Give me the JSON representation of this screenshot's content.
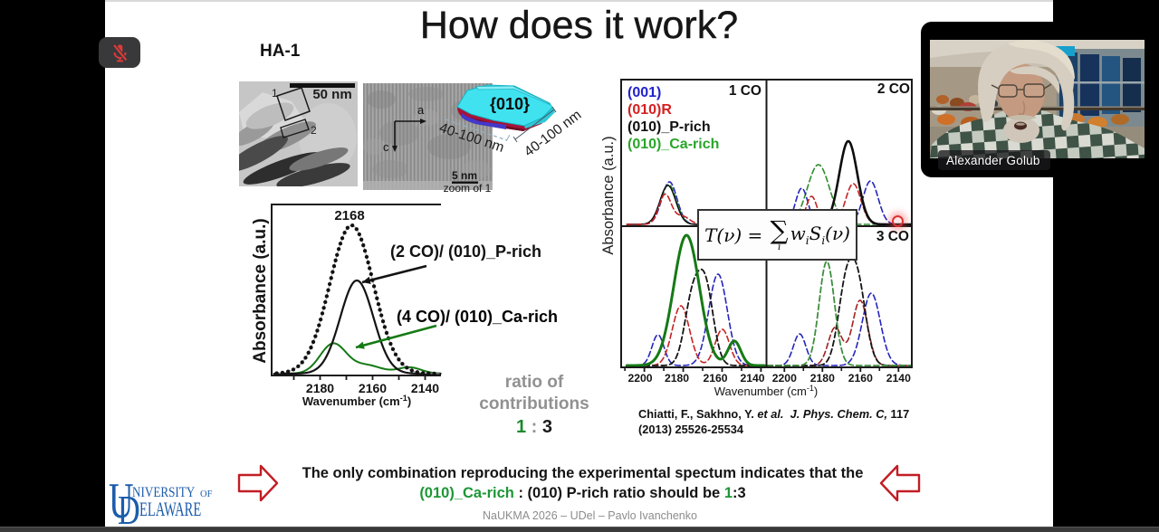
{
  "slide": {
    "title": "How does it work?",
    "sample_label": "HA-1",
    "footer": "NaUKMA 2026 – UDel – Pavlo Ivanchenko"
  },
  "colors": {
    "blue": "#2222bb",
    "red": "#c42222",
    "black": "#111111",
    "green_solid": "#157a15",
    "green_dashed": "#2e8b2e",
    "legend_green": "#2aa52a",
    "banner_green": "#1d9636",
    "ratio_green": "#1d8a2e",
    "arrow_red": "#c21d24",
    "ud_blue": "#1c5cab",
    "laser_red": "#e03030",
    "crystal_cyan": "#3fe0ee",
    "crystal_crimson": "#a81236",
    "crystal_blue": "#4338c8"
  },
  "tem1": {
    "scale_bar_label": "50 nm",
    "region1_label": "1",
    "region2_label": "2"
  },
  "tem2": {
    "axis_a_label": "a",
    "axis_c_label": "c",
    "scale_bar_label": "5 nm",
    "caption": "zoom of 1"
  },
  "crystal": {
    "face_label": "{010}",
    "front_dimension": "40-100 nm",
    "side_dimension": "40-100 nm"
  },
  "formula": {
    "prefix": "T(ν) = ",
    "sigma": "∑",
    "sigma_subscript": "i",
    "terms": [
      {
        "text": "w",
        "style": "var"
      },
      {
        "text": "i",
        "style": "sub"
      },
      {
        "text": "S",
        "style": "var"
      },
      {
        "text": "i",
        "style": "sub"
      },
      {
        "text": "(ν)",
        "style": "var"
      }
    ]
  },
  "ratio_note": {
    "line1": "ratio of",
    "line2": "contributions",
    "value_parts": [
      {
        "text": "1",
        "color": "#1d8a2e"
      },
      {
        "text": " : ",
        "color": "#919191"
      },
      {
        "text": "3",
        "color": "#1a1a1a"
      }
    ]
  },
  "citation": {
    "line1_parts": [
      {
        "text": "Chiatti, F., Sakhno, Y. ",
        "italic": false
      },
      {
        "text": "et al.",
        "italic": true
      },
      {
        "text": "  ",
        "italic": false
      },
      {
        "text": "J. Phys. Chem. C,",
        "italic": true
      },
      {
        "text": " 117",
        "italic": false
      }
    ],
    "line2": "(2013) 25526-25534"
  },
  "banner": {
    "line1": "The only combination reproducing the experimental spectum indicates that the",
    "line2_parts": [
      {
        "text": "(010)_Ca-rich",
        "color": "#1d9636"
      },
      {
        "text": " : (010) P-rich ratio should be ",
        "color": "#141414"
      },
      {
        "text": "1",
        "color": "#1d9636"
      },
      {
        "text": ":3",
        "color": "#141414"
      }
    ]
  },
  "ud_logo": {
    "u": "U",
    "niversity": "NIVERSITY",
    "of": "OF",
    "d": "D",
    "elaware": "ELAWARE"
  },
  "video": {
    "participant_name": "Alexander Golub"
  },
  "icons": {
    "mute": "microphone-muted"
  },
  "chart_data": [
    {
      "id": "left-plot",
      "type": "line",
      "xlabel_parts": {
        "main": "Wavenumber (cm",
        "sup": "-1",
        "end": ")"
      },
      "ylabel": "Absorbance (a.u.)",
      "peak_label": "2168",
      "x_ticks_major": [
        2180,
        2160,
        2140
      ],
      "x_ticks_minor": [
        2190,
        2170,
        2150
      ],
      "x_range": [
        2198.5,
        2133
      ],
      "annotations": [
        {
          "text": "(2 CO)/ (010)_P-rich",
          "color": "#121212"
        },
        {
          "text": "(4 CO)/ (010)_Ca-rich",
          "color": "#157a15"
        }
      ],
      "series": [
        {
          "name": "experimental",
          "style": "dots",
          "color": "#111111",
          "components": [
            [
              2168,
              8.3,
              164
            ]
          ]
        },
        {
          "name": "(2 CO)/ (010)_P-rich",
          "style": "solid",
          "color": "#131313",
          "width": 2.2,
          "components": [
            [
              2166.0,
              6.3,
              103
            ]
          ]
        },
        {
          "name": "(4 CO)/ (010)_Ca-rich",
          "style": "solid",
          "color": "#157a15",
          "width": 2,
          "components": [
            [
              2175.0,
              5.0,
              33
            ],
            [
              2162,
              5.5,
              9
            ],
            [
              2146.0,
              4.5,
              7
            ]
          ]
        }
      ]
    },
    {
      "id": "panel-1co",
      "type": "line",
      "label": "1 CO",
      "legend": [
        {
          "text": "(001)",
          "color": "#2222cc"
        },
        {
          "text": "(010)R",
          "color": "#d42020"
        },
        {
          "text": "(010)_P-rich",
          "color": "#111111"
        },
        {
          "text": "(010)_Ca-rich",
          "color": "#2aa52a"
        }
      ],
      "series": [
        {
          "name": "(001)",
          "style": "dashed",
          "color": "#2525bb",
          "width": 1.6,
          "components": [
            [
              2187.1,
              3.9,
              47
            ]
          ]
        },
        {
          "name": "(010)_Ca-rich",
          "style": "dashed",
          "color": "#2e8b2e",
          "width": 1.6,
          "components": [
            [
              2187.5,
              3.97,
              44
            ]
          ]
        },
        {
          "name": "(010)_P-rich",
          "style": "solid",
          "color": "#111111",
          "width": 1.5,
          "components": [
            [
              2187.9,
              4.05,
              43
            ]
          ]
        },
        {
          "name": "(010)R",
          "style": "dashed",
          "color": "#c42424",
          "width": 1.6,
          "components": [
            [
              2189.3,
              3.16,
              33
            ],
            [
              2180.5,
              3.68,
              9
            ]
          ]
        }
      ]
    },
    {
      "id": "panel-2co",
      "type": "line",
      "label": "2 CO",
      "series": [
        {
          "name": "(010)_Ca-rich",
          "style": "dashed",
          "color": "#2e8b2e",
          "width": 1.6,
          "components": [
            [
              2182.1,
              5.85,
              66
            ]
          ]
        },
        {
          "name": "(001)",
          "style": "dashed",
          "color": "#2525bb",
          "width": 1.6,
          "components": [
            [
              2190.9,
              3.29,
              40
            ],
            [
              2154.7,
              4.02,
              48
            ]
          ]
        },
        {
          "name": "(010)R",
          "style": "dashed",
          "color": "#c42424",
          "width": 1.6,
          "components": [
            [
              2185.7,
              2.92,
              31
            ],
            [
              2163.8,
              4.02,
              45
            ]
          ]
        },
        {
          "name": "(010)_P-rich",
          "style": "solid",
          "color": "#0d0d0d",
          "width": 2.6,
          "components": [
            [
              2166.4,
              4.75,
              92
            ]
          ]
        }
      ]
    },
    {
      "id": "panel-3co-left",
      "type": "line",
      "label": "",
      "xlabel_parts": {
        "main": "Wavenumber (cm",
        "sup": "-1",
        "end": ")"
      },
      "ylabel": "Absorbance (a.u.)",
      "x_ticks_major": [
        2200,
        2180,
        2160,
        2140
      ],
      "series": [
        {
          "name": "(001)",
          "style": "dashed",
          "color": "#2525bb",
          "width": 1.6,
          "components": [
            [
              2193.0,
              3.09,
              34
            ],
            [
              2162.1,
              4.78,
              101
            ]
          ]
        },
        {
          "name": "(010)R",
          "style": "dashed",
          "color": "#c42424",
          "width": 1.6,
          "components": [
            [
              2181.2,
              4.42,
              66
            ],
            [
              2159.9,
              3.68,
              40
            ]
          ]
        },
        {
          "name": "(010)_P-rich",
          "style": "dashed",
          "color": "#151515",
          "width": 1.8,
          "components": [
            [
              2175.4,
              4.05,
              70
            ],
            [
              2168.4,
              4.05,
              83
            ]
          ]
        },
        {
          "name": "(010)_Ca-rich",
          "style": "solid",
          "color": "#157a15",
          "width": 3,
          "components": [
            [
              2178.3,
              6.62,
              144
            ],
            [
              2153.7,
              3.31,
              27
            ]
          ]
        }
      ],
      "x_ticks_minor": [
        2210,
        2190,
        2170,
        2150
      ]
    },
    {
      "id": "panel-3co-right",
      "type": "line",
      "label": "3 CO",
      "x_ticks_major": [
        2200,
        2180,
        2160,
        2140
      ],
      "series": [
        {
          "name": "(001)",
          "style": "dashed",
          "color": "#2525bb",
          "width": 1.6,
          "components": [
            [
              2192.0,
              3.29,
              35
            ],
            [
              2154.3,
              4.75,
              80
            ]
          ]
        },
        {
          "name": "(010)R",
          "style": "dashed",
          "color": "#a02020",
          "width": 1.6,
          "components": [
            [
              2173.3,
              3.65,
              42
            ],
            [
              2160.2,
              4.02,
              72
            ]
          ]
        },
        {
          "name": "(010)_P-rich",
          "style": "dashed",
          "color": "#151515",
          "width": 1.8,
          "components": [
            [
              2168.2,
              4.02,
              72
            ],
            [
              2161.6,
              4.39,
              90
            ]
          ]
        },
        {
          "name": "(010)_Ca-rich",
          "style": "dashed",
          "color": "#3f8f3f",
          "width": 1.8,
          "components": [
            [
              2177.7,
              4.02,
              115
            ]
          ]
        }
      ],
      "x_ticks_minor": [
        2190,
        2170,
        2150
      ]
    }
  ]
}
